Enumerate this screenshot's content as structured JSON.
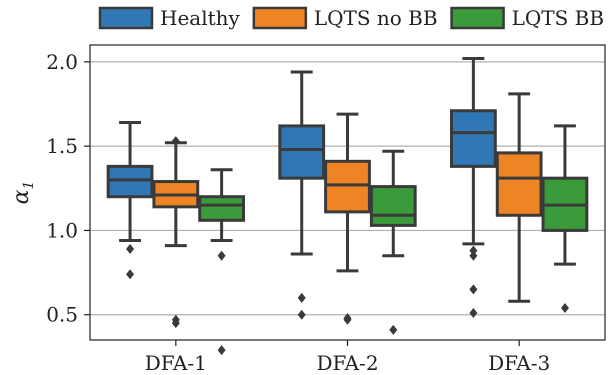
{
  "chart_data": {
    "type": "boxplot",
    "ylabel_base": "α",
    "ylabel_sub": "1",
    "xlabel": "",
    "ylim": [
      0.35,
      2.1
    ],
    "yticks": [
      0.5,
      1.0,
      1.5,
      2.0
    ],
    "ytick_labels": [
      "0.5",
      "1.0",
      "1.5",
      "2.0"
    ],
    "grid": "y",
    "legend_position": "top",
    "categories": [
      "DFA-1",
      "DFA-2",
      "DFA-3"
    ],
    "series": [
      {
        "name": "Healthy",
        "color": "#2f77b5",
        "boxes": [
          {
            "whislo": 0.94,
            "q1": 1.2,
            "med": 1.3,
            "q3": 1.38,
            "whishi": 1.64,
            "fliers": [
              0.89,
              0.74
            ]
          },
          {
            "whislo": 0.86,
            "q1": 1.31,
            "med": 1.48,
            "q3": 1.62,
            "whishi": 1.94,
            "fliers": [
              0.6,
              0.5
            ]
          },
          {
            "whislo": 0.92,
            "q1": 1.38,
            "med": 1.58,
            "q3": 1.71,
            "whishi": 2.02,
            "fliers": [
              0.88,
              0.85,
              0.65,
              0.51
            ]
          }
        ]
      },
      {
        "name": "LQTS no BB",
        "color": "#ef8424",
        "boxes": [
          {
            "whislo": 0.91,
            "q1": 1.14,
            "med": 1.21,
            "q3": 1.29,
            "whishi": 1.52,
            "fliers": [
              1.53,
              0.47,
              0.45
            ]
          },
          {
            "whislo": 0.76,
            "q1": 1.11,
            "med": 1.27,
            "q3": 1.41,
            "whishi": 1.69,
            "fliers": [
              0.48,
              0.47
            ]
          },
          {
            "whislo": 0.58,
            "q1": 1.09,
            "med": 1.31,
            "q3": 1.46,
            "whishi": 1.81,
            "fliers": []
          }
        ]
      },
      {
        "name": "LQTS BB",
        "color": "#3a9b3a",
        "boxes": [
          {
            "whislo": 0.94,
            "q1": 1.06,
            "med": 1.15,
            "q3": 1.2,
            "whishi": 1.36,
            "fliers": [
              0.85,
              0.29
            ]
          },
          {
            "whislo": 0.85,
            "q1": 1.03,
            "med": 1.09,
            "q3": 1.26,
            "whishi": 1.47,
            "fliers": [
              0.41
            ]
          },
          {
            "whislo": 0.8,
            "q1": 1.0,
            "med": 1.15,
            "q3": 1.31,
            "whishi": 1.62,
            "fliers": [
              0.54
            ]
          }
        ]
      }
    ]
  }
}
